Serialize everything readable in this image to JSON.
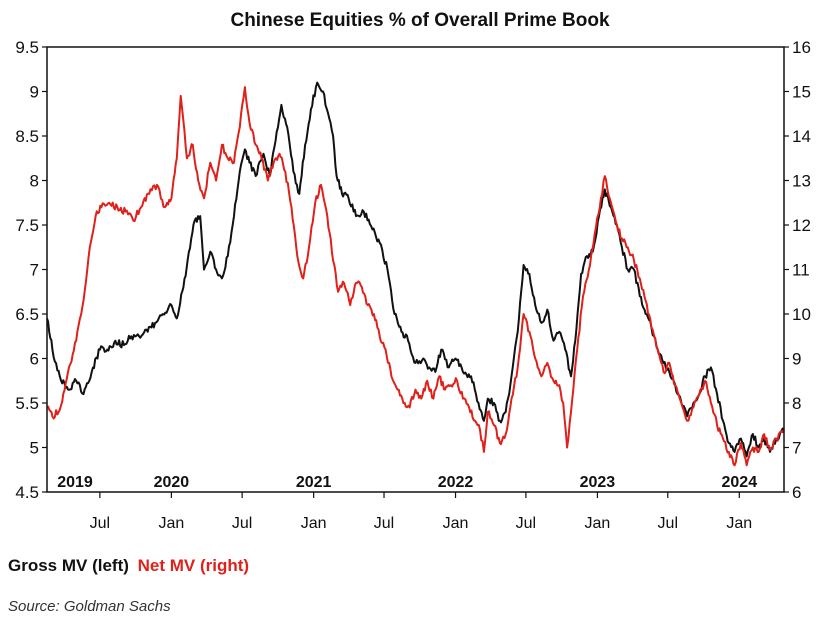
{
  "chart_data": {
    "type": "line",
    "title": "Chinese Equities % of Overall Prime Book",
    "left_axis": {
      "range": [
        4.5,
        9.5
      ],
      "ticks": [
        "4.5",
        "5",
        "5.5",
        "6",
        "6.5",
        "7",
        "7.5",
        "8",
        "8.5",
        "9",
        "9.5"
      ]
    },
    "right_axis": {
      "range": [
        6,
        16
      ],
      "ticks": [
        "6",
        "7",
        "8",
        "9",
        "10",
        "11",
        "12",
        "13",
        "14",
        "15",
        "16"
      ]
    },
    "x_range": [
      "2019-02-15",
      "2024-04-25"
    ],
    "year_labels": [
      {
        "date": "2019-01-01",
        "label": "2019"
      },
      {
        "date": "2020-01-01",
        "label": "2020"
      },
      {
        "date": "2021-01-01",
        "label": "2021"
      },
      {
        "date": "2022-01-01",
        "label": "2022"
      },
      {
        "date": "2023-01-01",
        "label": "2023"
      },
      {
        "date": "2024-01-01",
        "label": "2024"
      }
    ],
    "month_ticks": [
      {
        "date": "2019-07-01",
        "label": "Jul"
      },
      {
        "date": "2020-01-01",
        "label": "Jan"
      },
      {
        "date": "2020-07-01",
        "label": "Jul"
      },
      {
        "date": "2021-01-01",
        "label": "Jan"
      },
      {
        "date": "2021-07-01",
        "label": "Jul"
      },
      {
        "date": "2022-01-01",
        "label": "Jan"
      },
      {
        "date": "2022-07-01",
        "label": "Jul"
      },
      {
        "date": "2023-01-01",
        "label": "Jan"
      },
      {
        "date": "2023-07-01",
        "label": "Jul"
      },
      {
        "date": "2024-01-01",
        "label": "Jan"
      }
    ],
    "grid": false,
    "legend_placement": "bottom-left",
    "series": [
      {
        "name": "Gross MV (left)",
        "axis": "left",
        "color": "#111111",
        "points": [
          [
            "2019-02-15",
            6.45
          ],
          [
            "2019-03-01",
            6.1
          ],
          [
            "2019-03-20",
            5.8
          ],
          [
            "2019-04-10",
            5.65
          ],
          [
            "2019-05-01",
            5.75
          ],
          [
            "2019-05-20",
            5.6
          ],
          [
            "2019-06-10",
            5.85
          ],
          [
            "2019-07-01",
            6.1
          ],
          [
            "2019-07-20",
            6.1
          ],
          [
            "2019-08-10",
            6.2
          ],
          [
            "2019-09-01",
            6.15
          ],
          [
            "2019-09-20",
            6.25
          ],
          [
            "2019-10-10",
            6.25
          ],
          [
            "2019-11-01",
            6.3
          ],
          [
            "2019-11-20",
            6.4
          ],
          [
            "2019-12-10",
            6.5
          ],
          [
            "2020-01-01",
            6.6
          ],
          [
            "2020-01-15",
            6.45
          ],
          [
            "2020-02-01",
            6.8
          ],
          [
            "2020-02-15",
            7.2
          ],
          [
            "2020-03-01",
            7.55
          ],
          [
            "2020-03-15",
            7.6
          ],
          [
            "2020-03-25",
            7.0
          ],
          [
            "2020-04-10",
            7.2
          ],
          [
            "2020-04-25",
            7.0
          ],
          [
            "2020-05-10",
            6.9
          ],
          [
            "2020-05-25",
            7.15
          ],
          [
            "2020-06-10",
            7.6
          ],
          [
            "2020-06-25",
            8.1
          ],
          [
            "2020-07-08",
            8.35
          ],
          [
            "2020-07-20",
            8.2
          ],
          [
            "2020-08-05",
            8.05
          ],
          [
            "2020-08-25",
            8.3
          ],
          [
            "2020-09-10",
            8.05
          ],
          [
            "2020-09-25",
            8.45
          ],
          [
            "2020-10-10",
            8.85
          ],
          [
            "2020-10-25",
            8.6
          ],
          [
            "2020-11-10",
            8.1
          ],
          [
            "2020-11-25",
            7.85
          ],
          [
            "2020-12-10",
            8.4
          ],
          [
            "2020-12-25",
            8.8
          ],
          [
            "2021-01-10",
            9.1
          ],
          [
            "2021-01-25",
            9.0
          ],
          [
            "2021-02-10",
            8.7
          ],
          [
            "2021-02-20",
            8.5
          ],
          [
            "2021-03-01",
            8.05
          ],
          [
            "2021-03-15",
            7.85
          ],
          [
            "2021-04-01",
            7.8
          ],
          [
            "2021-04-20",
            7.6
          ],
          [
            "2021-05-10",
            7.65
          ],
          [
            "2021-06-01",
            7.45
          ],
          [
            "2021-06-20",
            7.3
          ],
          [
            "2021-07-10",
            7.0
          ],
          [
            "2021-07-28",
            6.5
          ],
          [
            "2021-08-15",
            6.3
          ],
          [
            "2021-09-01",
            6.2
          ],
          [
            "2021-09-20",
            5.95
          ],
          [
            "2021-10-10",
            6.0
          ],
          [
            "2021-10-25",
            5.9
          ],
          [
            "2021-11-10",
            5.85
          ],
          [
            "2021-11-25",
            6.1
          ],
          [
            "2021-12-15",
            5.9
          ],
          [
            "2022-01-01",
            6.0
          ],
          [
            "2022-01-20",
            5.85
          ],
          [
            "2022-02-10",
            5.8
          ],
          [
            "2022-03-01",
            5.5
          ],
          [
            "2022-03-15",
            5.3
          ],
          [
            "2022-03-25",
            5.55
          ],
          [
            "2022-04-10",
            5.5
          ],
          [
            "2022-04-25",
            5.3
          ],
          [
            "2022-05-10",
            5.4
          ],
          [
            "2022-05-25",
            5.8
          ],
          [
            "2022-06-10",
            6.3
          ],
          [
            "2022-06-25",
            7.05
          ],
          [
            "2022-07-10",
            6.95
          ],
          [
            "2022-07-25",
            6.6
          ],
          [
            "2022-08-10",
            6.4
          ],
          [
            "2022-08-25",
            6.55
          ],
          [
            "2022-09-10",
            6.2
          ],
          [
            "2022-09-25",
            6.3
          ],
          [
            "2022-10-10",
            6.1
          ],
          [
            "2022-10-25",
            5.8
          ],
          [
            "2022-11-05",
            6.2
          ],
          [
            "2022-11-20",
            6.95
          ],
          [
            "2022-12-05",
            7.15
          ],
          [
            "2022-12-20",
            7.2
          ],
          [
            "2023-01-05",
            7.6
          ],
          [
            "2023-01-20",
            7.9
          ],
          [
            "2023-02-05",
            7.7
          ],
          [
            "2023-02-20",
            7.5
          ],
          [
            "2023-03-05",
            7.25
          ],
          [
            "2023-03-20",
            7.0
          ],
          [
            "2023-04-05",
            7.0
          ],
          [
            "2023-04-20",
            6.7
          ],
          [
            "2023-05-05",
            6.5
          ],
          [
            "2023-05-20",
            6.35
          ],
          [
            "2023-06-05",
            6.1
          ],
          [
            "2023-06-20",
            5.95
          ],
          [
            "2023-07-05",
            5.85
          ],
          [
            "2023-07-20",
            5.7
          ],
          [
            "2023-08-05",
            5.5
          ],
          [
            "2023-08-20",
            5.35
          ],
          [
            "2023-09-05",
            5.5
          ],
          [
            "2023-09-20",
            5.6
          ],
          [
            "2023-10-05",
            5.8
          ],
          [
            "2023-10-20",
            5.9
          ],
          [
            "2023-11-05",
            5.6
          ],
          [
            "2023-11-20",
            5.3
          ],
          [
            "2023-12-05",
            5.05
          ],
          [
            "2023-12-20",
            4.95
          ],
          [
            "2024-01-05",
            5.1
          ],
          [
            "2024-01-20",
            4.9
          ],
          [
            "2024-02-05",
            5.15
          ],
          [
            "2024-02-20",
            5.0
          ],
          [
            "2024-03-05",
            5.1
          ],
          [
            "2024-03-20",
            4.95
          ],
          [
            "2024-04-05",
            5.1
          ],
          [
            "2024-04-25",
            5.2
          ]
        ]
      },
      {
        "name": "Net MV (right)",
        "axis": "right",
        "color": "#e0201a",
        "points": [
          [
            "2019-02-15",
            7.9
          ],
          [
            "2019-03-01",
            7.7
          ],
          [
            "2019-03-20",
            7.85
          ],
          [
            "2019-04-10",
            8.7
          ],
          [
            "2019-05-01",
            9.4
          ],
          [
            "2019-05-20",
            10.3
          ],
          [
            "2019-06-05",
            11.5
          ],
          [
            "2019-06-20",
            12.2
          ],
          [
            "2019-07-05",
            12.4
          ],
          [
            "2019-07-25",
            12.5
          ],
          [
            "2019-08-15",
            12.4
          ],
          [
            "2019-09-05",
            12.3
          ],
          [
            "2019-09-25",
            12.1
          ],
          [
            "2019-10-15",
            12.4
          ],
          [
            "2019-11-05",
            12.7
          ],
          [
            "2019-11-25",
            12.9
          ],
          [
            "2019-12-15",
            12.4
          ],
          [
            "2020-01-01",
            12.6
          ],
          [
            "2020-01-15",
            13.5
          ],
          [
            "2020-01-25",
            14.9
          ],
          [
            "2020-02-10",
            13.5
          ],
          [
            "2020-02-25",
            13.8
          ],
          [
            "2020-03-10",
            13.0
          ],
          [
            "2020-03-25",
            12.6
          ],
          [
            "2020-04-10",
            13.4
          ],
          [
            "2020-04-25",
            13.0
          ],
          [
            "2020-05-10",
            13.8
          ],
          [
            "2020-05-25",
            13.5
          ],
          [
            "2020-06-10",
            13.4
          ],
          [
            "2020-06-25",
            14.2
          ],
          [
            "2020-07-08",
            15.1
          ],
          [
            "2020-07-20",
            14.3
          ],
          [
            "2020-08-05",
            13.8
          ],
          [
            "2020-08-20",
            13.5
          ],
          [
            "2020-09-05",
            13.0
          ],
          [
            "2020-09-20",
            13.4
          ],
          [
            "2020-10-05",
            13.6
          ],
          [
            "2020-10-20",
            13.2
          ],
          [
            "2020-11-05",
            12.4
          ],
          [
            "2020-11-20",
            11.3
          ],
          [
            "2020-12-05",
            10.8
          ],
          [
            "2020-12-20",
            11.5
          ],
          [
            "2021-01-05",
            12.5
          ],
          [
            "2021-01-20",
            12.9
          ],
          [
            "2021-02-05",
            12.2
          ],
          [
            "2021-02-20",
            11.2
          ],
          [
            "2021-03-05",
            10.5
          ],
          [
            "2021-03-20",
            10.7
          ],
          [
            "2021-04-05",
            10.2
          ],
          [
            "2021-04-20",
            10.7
          ],
          [
            "2021-05-05",
            10.6
          ],
          [
            "2021-05-20",
            10.2
          ],
          [
            "2021-06-05",
            10.0
          ],
          [
            "2021-06-20",
            9.5
          ],
          [
            "2021-07-05",
            9.2
          ],
          [
            "2021-07-20",
            8.6
          ],
          [
            "2021-08-05",
            8.3
          ],
          [
            "2021-08-20",
            8.0
          ],
          [
            "2021-09-05",
            7.9
          ],
          [
            "2021-09-20",
            8.3
          ],
          [
            "2021-10-05",
            8.1
          ],
          [
            "2021-10-20",
            8.5
          ],
          [
            "2021-11-05",
            8.1
          ],
          [
            "2021-11-20",
            8.6
          ],
          [
            "2021-12-05",
            8.3
          ],
          [
            "2021-12-20",
            8.4
          ],
          [
            "2022-01-05",
            8.5
          ],
          [
            "2022-01-20",
            8.1
          ],
          [
            "2022-02-05",
            7.9
          ],
          [
            "2022-02-20",
            7.6
          ],
          [
            "2022-03-05",
            7.4
          ],
          [
            "2022-03-15",
            6.9
          ],
          [
            "2022-03-25",
            7.8
          ],
          [
            "2022-04-10",
            7.5
          ],
          [
            "2022-04-25",
            7.1
          ],
          [
            "2022-05-10",
            7.3
          ],
          [
            "2022-05-25",
            8.1
          ],
          [
            "2022-06-10",
            8.8
          ],
          [
            "2022-06-25",
            10.0
          ],
          [
            "2022-07-10",
            9.6
          ],
          [
            "2022-07-25",
            9.0
          ],
          [
            "2022-08-10",
            8.6
          ],
          [
            "2022-08-25",
            8.9
          ],
          [
            "2022-09-10",
            8.5
          ],
          [
            "2022-09-25",
            8.4
          ],
          [
            "2022-10-05",
            8.0
          ],
          [
            "2022-10-15",
            7.0
          ],
          [
            "2022-10-25",
            7.8
          ],
          [
            "2022-11-10",
            9.2
          ],
          [
            "2022-11-25",
            10.4
          ],
          [
            "2022-12-10",
            11.0
          ],
          [
            "2022-12-25",
            11.8
          ],
          [
            "2023-01-10",
            12.6
          ],
          [
            "2023-01-20",
            13.1
          ],
          [
            "2023-02-05",
            12.5
          ],
          [
            "2023-02-20",
            12.0
          ],
          [
            "2023-03-05",
            11.7
          ],
          [
            "2023-03-20",
            11.5
          ],
          [
            "2023-04-05",
            11.2
          ],
          [
            "2023-04-20",
            10.8
          ],
          [
            "2023-05-05",
            10.3
          ],
          [
            "2023-05-20",
            9.7
          ],
          [
            "2023-06-05",
            9.2
          ],
          [
            "2023-06-20",
            8.7
          ],
          [
            "2023-07-05",
            8.9
          ],
          [
            "2023-07-20",
            8.4
          ],
          [
            "2023-08-05",
            8.0
          ],
          [
            "2023-08-20",
            7.6
          ],
          [
            "2023-09-05",
            7.9
          ],
          [
            "2023-09-20",
            8.2
          ],
          [
            "2023-10-05",
            8.5
          ],
          [
            "2023-10-20",
            8.0
          ],
          [
            "2023-11-05",
            7.5
          ],
          [
            "2023-11-20",
            7.2
          ],
          [
            "2023-12-05",
            6.9
          ],
          [
            "2023-12-20",
            6.6
          ],
          [
            "2024-01-05",
            7.1
          ],
          [
            "2024-01-20",
            6.6
          ],
          [
            "2024-02-05",
            7.0
          ],
          [
            "2024-02-20",
            6.9
          ],
          [
            "2024-03-05",
            7.3
          ],
          [
            "2024-03-20",
            6.95
          ],
          [
            "2024-04-05",
            7.2
          ],
          [
            "2024-04-25",
            7.4
          ]
        ]
      }
    ]
  },
  "legend": {
    "gross_label": "Gross MV (left)",
    "net_label": "Net MV (right)"
  },
  "source": "Source: Goldman Sachs"
}
